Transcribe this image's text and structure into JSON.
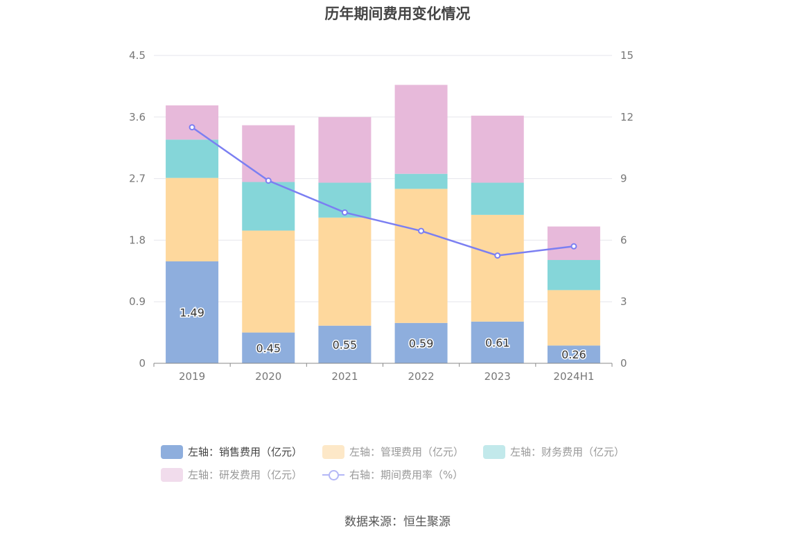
{
  "title": "历年期间费用变化情况",
  "source": "数据来源：恒生聚源",
  "chart_data": {
    "type": "bar",
    "stacked": true,
    "categories": [
      "2019",
      "2020",
      "2021",
      "2022",
      "2023",
      "2024H1"
    ],
    "left_axis": {
      "min": 0,
      "max": 4.5,
      "ticks": [
        "0",
        "0.9",
        "1.8",
        "2.7",
        "3.6",
        "4.5"
      ]
    },
    "right_axis": {
      "min": 0,
      "max": 15,
      "ticks": [
        "0",
        "3",
        "6",
        "9",
        "12",
        "15"
      ]
    },
    "series": [
      {
        "name": "左轴：销售费用（亿元）",
        "kind": "bar",
        "color": "#8eaedd",
        "values": [
          1.49,
          0.45,
          0.55,
          0.59,
          0.61,
          0.26
        ],
        "labels": [
          "1.49",
          "0.45",
          "0.55",
          "0.59",
          "0.61",
          "0.26"
        ]
      },
      {
        "name": "左轴：管理费用（亿元）",
        "kind": "bar",
        "color": "#fed89d",
        "values": [
          1.22,
          1.49,
          1.58,
          1.96,
          1.56,
          0.81
        ]
      },
      {
        "name": "左轴：财务费用（亿元）",
        "kind": "bar",
        "color": "#85d6d9",
        "values": [
          0.56,
          0.71,
          0.51,
          0.22,
          0.47,
          0.44
        ]
      },
      {
        "name": "左轴：研发费用（亿元）",
        "kind": "bar",
        "color": "#e7b9da",
        "values": [
          0.5,
          0.83,
          0.96,
          1.3,
          0.98,
          0.49
        ]
      },
      {
        "name": "右轴：期间费用率（%）",
        "kind": "line",
        "axis": "right",
        "color": "#7b7ff2",
        "values": [
          11.5,
          8.9,
          7.35,
          6.45,
          5.25,
          5.7
        ]
      }
    ]
  }
}
